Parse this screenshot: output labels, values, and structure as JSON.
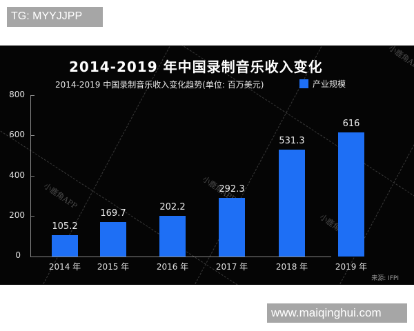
{
  "overlay": {
    "top_tag": "TG: MYYJJPP",
    "bottom_tag": "www.maiqinghui.com"
  },
  "colors": {
    "background": "#050505",
    "bar": "#1e6ff5",
    "tag": "#a6a6a6"
  },
  "chart": {
    "main_title": "2014-2019 年中国录制音乐收入变化",
    "subtitle": "2014-2019 中国录制音乐收入变化趋势(单位: 百万美元)",
    "legend_label": "产业规模",
    "source": "来源: IFPI",
    "watermark": "小鹿角APP",
    "y_ticks": [
      "0",
      "200",
      "400",
      "600",
      "800"
    ]
  },
  "chart_data": {
    "type": "bar",
    "title": "2014-2019 年中国录制音乐收入变化",
    "subtitle": "2014-2019 中国录制音乐收入变化趋势(单位: 百万美元)",
    "categories": [
      "2014 年",
      "2015 年",
      "2016 年",
      "2017 年",
      "2018 年",
      "2019 年"
    ],
    "series": [
      {
        "name": "产业规模",
        "values": [
          105.2,
          169.7,
          202.2,
          292.3,
          531.3,
          616
        ]
      }
    ],
    "value_labels": [
      "105.2",
      "169.7",
      "202.2",
      "292.3",
      "531.3",
      "616"
    ],
    "xlabel": "",
    "ylabel": "百万美元",
    "ylim": [
      0,
      800
    ],
    "yticks": [
      0,
      200,
      400,
      600,
      800
    ],
    "grid": false,
    "legend_position": "top-right",
    "source": "来源: IFPI"
  }
}
